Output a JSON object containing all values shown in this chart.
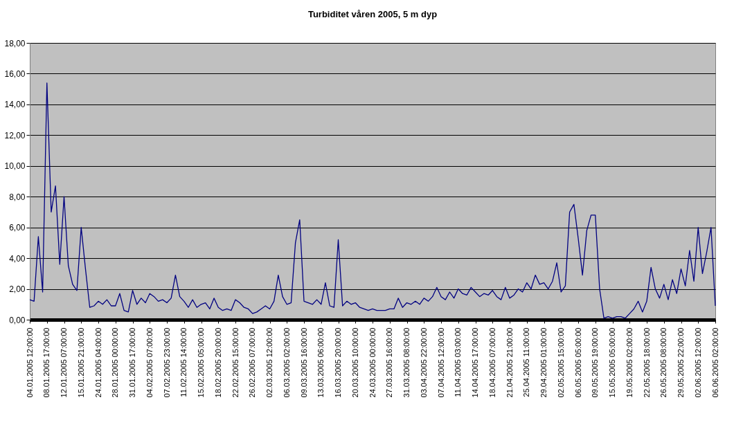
{
  "chart_data": {
    "type": "line",
    "title": "Turbiditet våren 2005,  5 m dyp",
    "categories": [
      "04.01.2005 12:00:00",
      null,
      null,
      null,
      "08.01.2005 17:00:00",
      null,
      null,
      null,
      "12.01.2005 07:00:00",
      null,
      null,
      null,
      "15.01.2005 21:00:00",
      null,
      null,
      null,
      "24.01.2005 04:00:00",
      null,
      null,
      null,
      "28.01.2005 00:00:00",
      null,
      null,
      null,
      "31.01.2005 17:00:00",
      null,
      null,
      null,
      "04.02.2005 07:00:00",
      null,
      null,
      null,
      "07.02.2005 23:00:00",
      null,
      null,
      null,
      "11.02.2005 14:00:00",
      null,
      null,
      null,
      "15.02.2005 05:00:00",
      null,
      null,
      null,
      "18.02.2005 20:00:00",
      null,
      null,
      null,
      "22.02.2005 15:00:00",
      null,
      null,
      null,
      "26.02.2005 07:00:00",
      null,
      null,
      null,
      "02.03.2005 12:00:00",
      null,
      null,
      null,
      "06.03.2005 02:00:00",
      null,
      null,
      null,
      "09.03.2005 16:00:00",
      null,
      null,
      null,
      "13.03.2005 06:00:00",
      null,
      null,
      null,
      "16.03.2005 20:00:00",
      null,
      null,
      null,
      "20.03.2005 10:00:00",
      null,
      null,
      null,
      "24.03.2005 00:00:00",
      null,
      null,
      null,
      "27.03.2005 16:00:00",
      null,
      null,
      null,
      "31.03.2005 08:00:00",
      null,
      null,
      null,
      "03.04.2005 22:00:00",
      null,
      null,
      null,
      "07.04.2005 12:00:00",
      null,
      null,
      null,
      "11.04.2005 03:00:00",
      null,
      null,
      null,
      "14.04.2005 17:00:00",
      null,
      null,
      null,
      "18.04.2005 07:00:00",
      null,
      null,
      null,
      "21.04.2005 21:00:00",
      null,
      null,
      null,
      "25.04.2005 11:00:00",
      null,
      null,
      null,
      "29.04.2005 01:00:00",
      null,
      null,
      null,
      "02.05.2005 15:00:00",
      null,
      null,
      null,
      "06.05.2005 05:00:00",
      null,
      null,
      null,
      "09.05.2005 19:00:00",
      null,
      null,
      null,
      "15.05.2005 05:00:00",
      null,
      null,
      null,
      "19.05.2005 02:00:00",
      null,
      null,
      null,
      "22.05.2005 18:00:00",
      null,
      null,
      null,
      "26.05.2005 08:00:00",
      null,
      null,
      null,
      "29.05.2005 22:00:00",
      null,
      null,
      null,
      "02.06.2005 12:00:00",
      null,
      null,
      null,
      "06.06.2005 02:00:00"
    ],
    "series": [
      {
        "color": "#000080",
        "values": [
          1.3,
          1.2,
          5.4,
          1.8,
          15.4,
          7.0,
          8.7,
          3.6,
          8.0,
          3.5,
          2.3,
          1.9,
          6.0,
          3.3,
          0.8,
          0.9,
          1.2,
          1.0,
          1.3,
          0.9,
          0.9,
          1.7,
          0.6,
          0.5,
          1.9,
          1.0,
          1.4,
          1.1,
          1.7,
          1.5,
          1.2,
          1.3,
          1.1,
          1.4,
          2.9,
          1.5,
          1.2,
          0.8,
          1.3,
          0.8,
          1.0,
          1.1,
          0.7,
          1.4,
          0.8,
          0.6,
          0.7,
          0.6,
          1.3,
          1.1,
          0.8,
          0.7,
          0.4,
          0.5,
          0.7,
          0.9,
          0.7,
          1.2,
          2.9,
          1.5,
          1.0,
          1.1,
          5.0,
          6.5,
          1.2,
          1.1,
          1.0,
          1.3,
          1.0,
          2.4,
          0.9,
          0.8,
          5.2,
          0.9,
          1.2,
          1.0,
          1.1,
          0.8,
          0.7,
          0.6,
          0.7,
          0.6,
          0.6,
          0.6,
          0.7,
          0.7,
          1.4,
          0.8,
          1.1,
          1.0,
          1.2,
          1.0,
          1.4,
          1.2,
          1.5,
          2.1,
          1.5,
          1.3,
          1.8,
          1.4,
          2.0,
          1.7,
          1.6,
          2.1,
          1.8,
          1.5,
          1.7,
          1.6,
          1.9,
          1.5,
          1.3,
          2.1,
          1.4,
          1.6,
          2.0,
          1.8,
          2.4,
          2.0,
          2.9,
          2.3,
          2.4,
          2.0,
          2.5,
          3.7,
          1.8,
          2.2,
          7.0,
          7.5,
          5.3,
          2.9,
          5.8,
          6.8,
          6.8,
          2.0,
          0.1,
          0.2,
          0.1,
          0.2,
          0.2,
          0.1,
          0.4,
          0.7,
          1.2,
          0.5,
          1.2,
          3.4,
          2.0,
          1.4,
          2.3,
          1.3,
          2.6,
          1.7,
          3.3,
          2.2,
          4.5,
          2.5,
          6.0,
          3.0,
          4.4,
          6.0,
          0.9
        ]
      }
    ],
    "ylim": [
      0,
      18
    ],
    "yticks": [
      {
        "value": 0,
        "label": "0,00"
      },
      {
        "value": 2,
        "label": "2,00"
      },
      {
        "value": 4,
        "label": "4,00"
      },
      {
        "value": 6,
        "label": "6,00"
      },
      {
        "value": 8,
        "label": "8,00"
      },
      {
        "value": 10,
        "label": "10,00"
      },
      {
        "value": 12,
        "label": "12,00"
      },
      {
        "value": 14,
        "label": "14,00"
      },
      {
        "value": 16,
        "label": "16,00"
      },
      {
        "value": 18,
        "label": "18,00"
      }
    ],
    "grid": "y",
    "legend": false,
    "marker": "none",
    "line_style": "solid"
  }
}
